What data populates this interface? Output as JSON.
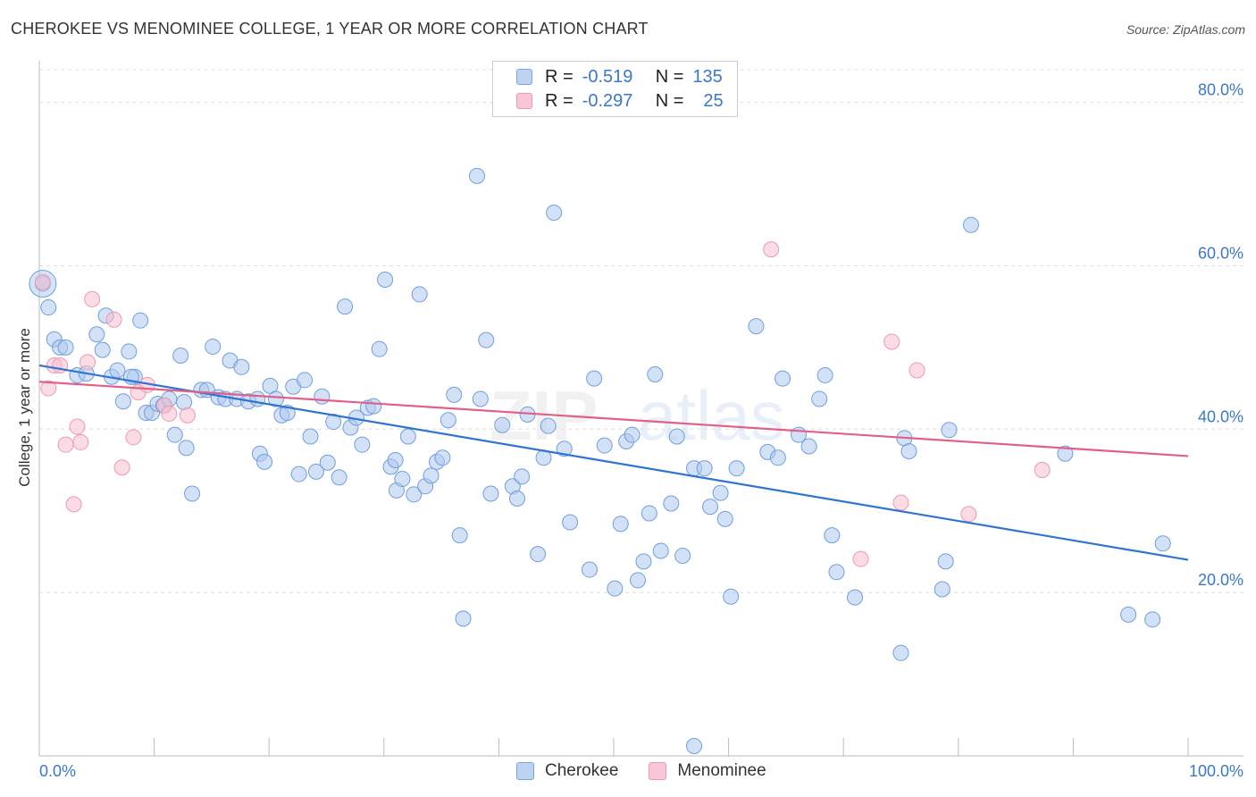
{
  "header": {
    "title": "CHEROKEE VS MENOMINEE COLLEGE, 1 YEAR OR MORE CORRELATION CHART",
    "source": "Source: ZipAtlas.com"
  },
  "legend": {
    "rows": [
      {
        "r_label": "R =",
        "r_value": "-0.519",
        "n_label": "N =",
        "n_value": "135",
        "swatch_color": "#bcd4f2"
      },
      {
        "r_label": "R =",
        "r_value": "-0.297",
        "n_label": "N =",
        "n_value": "25",
        "swatch_color": "#f9c6d5"
      }
    ]
  },
  "watermark": {
    "zip": "ZIP",
    "atlas": "atlas"
  },
  "colors": {
    "cherokee_fill": "#aec9ef",
    "cherokee_stroke": "#6f9fde",
    "cherokee_line": "#2f74d0",
    "menominee_fill": "#f7bfd0",
    "menominee_stroke": "#eb9ab3",
    "menominee_line": "#e0608a",
    "tick_text": "#3a78c9",
    "grid": "#dddddd"
  },
  "chart_data": {
    "type": "scatter",
    "title": "CHEROKEE VS MENOMINEE COLLEGE, 1 YEAR OR MORE CORRELATION CHART",
    "xlabel": "",
    "ylabel": "College, 1 year or more",
    "xlim": [
      0,
      100
    ],
    "ylim": [
      0,
      84
    ],
    "x_tick_labels": [
      "0.0%",
      "100.0%"
    ],
    "y_ticks": [
      20,
      40,
      60,
      80
    ],
    "y_tick_labels": [
      "20.0%",
      "40.0%",
      "60.0%",
      "80.0%"
    ],
    "grid": "horizontal dashed",
    "legend_position": "top-center",
    "series": [
      {
        "name": "Cherokee",
        "r": -0.519,
        "n": 135,
        "trend": {
          "x": [
            0,
            100
          ],
          "y": [
            47.8,
            24.0
          ]
        },
        "points": [
          [
            0.3,
            57.8
          ],
          [
            0.8,
            54.9
          ],
          [
            1.3,
            51.0
          ],
          [
            1.8,
            50.0
          ],
          [
            2.3,
            50.0
          ],
          [
            3.3,
            46.6
          ],
          [
            4.1,
            46.8
          ],
          [
            5.0,
            51.6
          ],
          [
            5.5,
            49.7
          ],
          [
            5.8,
            53.9
          ],
          [
            6.3,
            46.4
          ],
          [
            6.8,
            47.2
          ],
          [
            7.3,
            43.4
          ],
          [
            7.8,
            49.5
          ],
          [
            8.3,
            46.4
          ],
          [
            8.8,
            53.3
          ],
          [
            9.3,
            42.0
          ],
          [
            9.8,
            42.0
          ],
          [
            10.3,
            43.1
          ],
          [
            10.8,
            42.9
          ],
          [
            11.3,
            43.7
          ],
          [
            11.8,
            39.3
          ],
          [
            12.3,
            49.0
          ],
          [
            12.8,
            37.7
          ],
          [
            13.3,
            32.1
          ],
          [
            14.1,
            44.8
          ],
          [
            14.6,
            44.8
          ],
          [
            15.1,
            50.1
          ],
          [
            15.6,
            43.9
          ],
          [
            16.2,
            43.7
          ],
          [
            16.6,
            48.4
          ],
          [
            17.2,
            43.7
          ],
          [
            17.6,
            47.6
          ],
          [
            18.2,
            43.4
          ],
          [
            19.0,
            43.7
          ],
          [
            19.2,
            37.0
          ],
          [
            19.6,
            36.0
          ],
          [
            20.1,
            45.3
          ],
          [
            20.6,
            43.7
          ],
          [
            21.1,
            41.7
          ],
          [
            21.6,
            42.0
          ],
          [
            22.1,
            45.2
          ],
          [
            22.6,
            34.5
          ],
          [
            23.1,
            46.0
          ],
          [
            23.6,
            39.1
          ],
          [
            24.1,
            34.8
          ],
          [
            24.6,
            44.0
          ],
          [
            25.1,
            35.9
          ],
          [
            25.6,
            40.9
          ],
          [
            26.1,
            34.1
          ],
          [
            26.6,
            55.0
          ],
          [
            27.1,
            40.2
          ],
          [
            27.6,
            41.4
          ],
          [
            28.1,
            38.1
          ],
          [
            28.6,
            42.6
          ],
          [
            29.1,
            42.8
          ],
          [
            29.6,
            49.8
          ],
          [
            30.1,
            58.3
          ],
          [
            30.6,
            35.4
          ],
          [
            31.1,
            32.5
          ],
          [
            31.6,
            33.9
          ],
          [
            32.1,
            39.1
          ],
          [
            32.6,
            32.0
          ],
          [
            33.1,
            56.5
          ],
          [
            33.6,
            33.0
          ],
          [
            34.1,
            34.3
          ],
          [
            34.6,
            36.0
          ],
          [
            35.1,
            36.5
          ],
          [
            35.6,
            41.1
          ],
          [
            36.1,
            44.2
          ],
          [
            36.6,
            27.0
          ],
          [
            36.9,
            16.8
          ],
          [
            38.1,
            71.0
          ],
          [
            38.4,
            43.7
          ],
          [
            38.9,
            50.9
          ],
          [
            39.3,
            32.1
          ],
          [
            40.3,
            40.5
          ],
          [
            41.2,
            33.0
          ],
          [
            41.6,
            31.5
          ],
          [
            42.0,
            34.2
          ],
          [
            42.5,
            41.8
          ],
          [
            43.4,
            24.7
          ],
          [
            43.9,
            36.5
          ],
          [
            44.3,
            40.4
          ],
          [
            44.8,
            66.5
          ],
          [
            45.7,
            37.6
          ],
          [
            46.2,
            28.6
          ],
          [
            47.9,
            22.8
          ],
          [
            48.3,
            46.2
          ],
          [
            49.2,
            38.0
          ],
          [
            50.1,
            20.5
          ],
          [
            50.6,
            28.4
          ],
          [
            51.1,
            38.5
          ],
          [
            51.6,
            39.3
          ],
          [
            52.1,
            21.5
          ],
          [
            52.6,
            23.8
          ],
          [
            53.1,
            29.7
          ],
          [
            53.6,
            46.7
          ],
          [
            54.1,
            25.1
          ],
          [
            55.0,
            30.9
          ],
          [
            55.5,
            39.1
          ],
          [
            56.0,
            24.5
          ],
          [
            57.0,
            35.2
          ],
          [
            57.9,
            35.2
          ],
          [
            58.4,
            30.5
          ],
          [
            59.3,
            32.2
          ],
          [
            59.7,
            29.0
          ],
          [
            60.2,
            19.5
          ],
          [
            60.7,
            35.2
          ],
          [
            62.4,
            52.6
          ],
          [
            63.4,
            37.2
          ],
          [
            64.3,
            36.5
          ],
          [
            64.7,
            46.2
          ],
          [
            66.1,
            39.3
          ],
          [
            67.0,
            37.9
          ],
          [
            67.9,
            43.7
          ],
          [
            68.4,
            46.6
          ],
          [
            69.0,
            27.0
          ],
          [
            69.4,
            22.5
          ],
          [
            71.0,
            19.4
          ],
          [
            75.0,
            12.6
          ],
          [
            75.3,
            38.9
          ],
          [
            75.7,
            37.3
          ],
          [
            78.6,
            20.4
          ],
          [
            78.9,
            23.8
          ],
          [
            79.2,
            39.9
          ],
          [
            81.1,
            65.0
          ],
          [
            94.8,
            17.3
          ],
          [
            96.9,
            16.7
          ],
          [
            97.8,
            26.0
          ],
          [
            89.3,
            37.0
          ],
          [
            57.0,
            1.2
          ],
          [
            8.0,
            46.4
          ],
          [
            12.6,
            43.3
          ],
          [
            31.0,
            36.2
          ]
        ]
      },
      {
        "name": "Menominee",
        "r": -0.297,
        "n": 25,
        "trend": {
          "x": [
            0,
            100
          ],
          "y": [
            45.8,
            36.7
          ]
        },
        "points": [
          [
            0.3,
            58.0
          ],
          [
            0.8,
            45.0
          ],
          [
            1.3,
            47.8
          ],
          [
            1.8,
            47.8
          ],
          [
            2.3,
            38.1
          ],
          [
            3.0,
            30.8
          ],
          [
            3.3,
            40.3
          ],
          [
            3.6,
            38.4
          ],
          [
            4.2,
            48.2
          ],
          [
            4.6,
            55.9
          ],
          [
            6.5,
            53.4
          ],
          [
            7.2,
            35.3
          ],
          [
            8.2,
            39.0
          ],
          [
            8.6,
            44.5
          ],
          [
            9.4,
            45.4
          ],
          [
            10.9,
            42.9
          ],
          [
            11.3,
            41.9
          ],
          [
            12.9,
            41.7
          ],
          [
            63.7,
            62.0
          ],
          [
            71.5,
            24.1
          ],
          [
            74.2,
            50.7
          ],
          [
            75.0,
            31.0
          ],
          [
            76.4,
            47.2
          ],
          [
            80.9,
            29.6
          ],
          [
            87.3,
            35.0
          ]
        ]
      }
    ]
  },
  "bottom_legend": {
    "items": [
      {
        "label": "Cherokee",
        "color": "#bcd4f2"
      },
      {
        "label": "Menominee",
        "color": "#f9c6d5"
      }
    ]
  }
}
